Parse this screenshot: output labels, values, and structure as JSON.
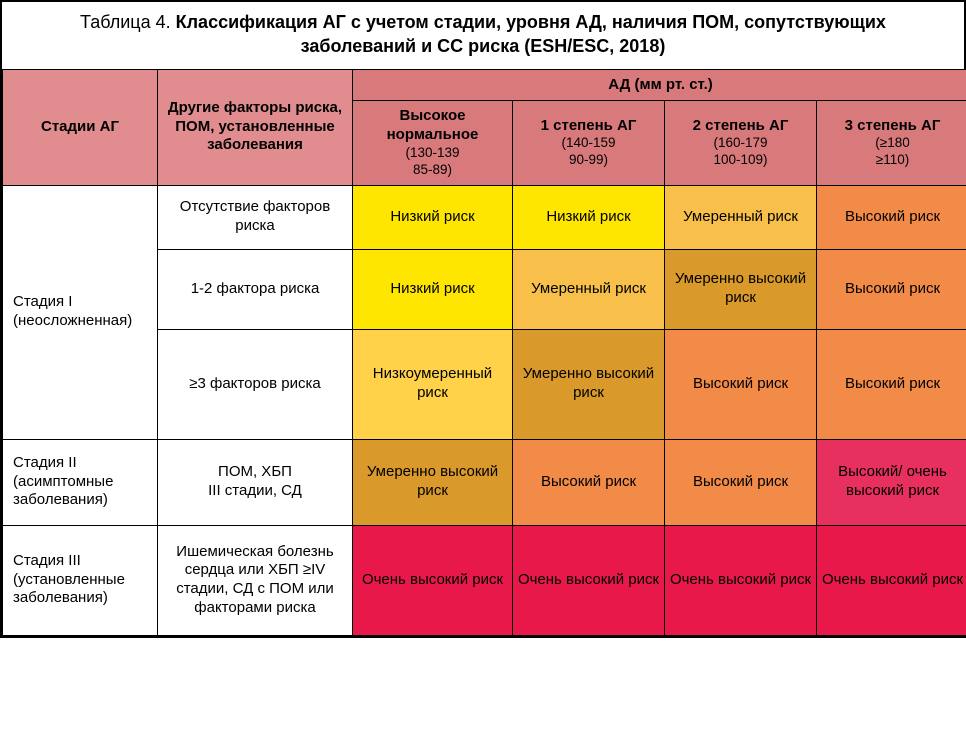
{
  "title": {
    "prefix": "Таблица 4. ",
    "main": "Классификация АГ с учетом стадии, уровня АД, наличия ПОМ, сопутствующих заболеваний и СС риска (ESH/ESC, 2018)"
  },
  "colors": {
    "header_pink": "#e18d8f",
    "header_pink2": "#d87a7c",
    "stage_bg": "#ffffff",
    "factors_bg": "#ffffff",
    "risk_low": "#ffe600",
    "risk_low_mod": "#ffd24a",
    "risk_mod": "#f8c04a",
    "risk_mod_high": "#d99a2b",
    "risk_high": "#f28a48",
    "risk_high_vhigh": "#e8305e",
    "risk_vhigh": "#e8194a"
  },
  "header": {
    "stage": "Стадии АГ",
    "factors": "Другие факторы риска, ПОМ, установленные заболевания",
    "bp_group": "АД (мм рт. ст.)",
    "cols": [
      {
        "title": "Высокое нормальное",
        "range": "(130-139\n85-89)"
      },
      {
        "title": "1 степень АГ",
        "range": "(140-159\n90-99)"
      },
      {
        "title": "2 степень АГ",
        "range": "(160-179\n100-109)"
      },
      {
        "title": "3 степень АГ",
        "range": "(≥180\n≥110)"
      }
    ]
  },
  "labels": {
    "low": "Низкий риск",
    "low_mod": "Низкоумеренный риск",
    "mod": "Умеренный риск",
    "mod_high": "Умеренно высокий риск",
    "high": "Высокий риск",
    "high_vhigh": "Высокий/ очень высокий риск",
    "vhigh": "Очень высокий риск"
  },
  "stages": [
    {
      "name": "Стадия I\n(неосложненная)",
      "rows": [
        {
          "factor": "Отсутствие факторов риска",
          "cells": [
            "low",
            "low",
            "mod",
            "high"
          ]
        },
        {
          "factor": "1-2 фактора риска",
          "cells": [
            "low",
            "mod",
            "mod_high",
            "high"
          ]
        },
        {
          "factor": "≥3 факторов риска",
          "cells": [
            "low_mod",
            "mod_high",
            "high",
            "high"
          ]
        }
      ]
    },
    {
      "name": "Стадия II\n(асимптомные заболевания)",
      "rows": [
        {
          "factor": "ПОМ, ХБП\nIII стадии, СД",
          "cells": [
            "mod_high",
            "high",
            "high",
            "high_vhigh"
          ]
        }
      ]
    },
    {
      "name": "Стадия III\n(установленные заболевания)",
      "rows": [
        {
          "factor": "Ишемическая болезнь сердца или ХБП ≥IV стадии, СД с ПОМ или факторами риска",
          "cells": [
            "vhigh",
            "vhigh",
            "vhigh",
            "vhigh"
          ]
        }
      ]
    }
  ],
  "row_heights": {
    "stage1_r1": 64,
    "stage1_r2": 80,
    "stage1_r3": 110,
    "stage2": 86,
    "stage3": 110
  }
}
